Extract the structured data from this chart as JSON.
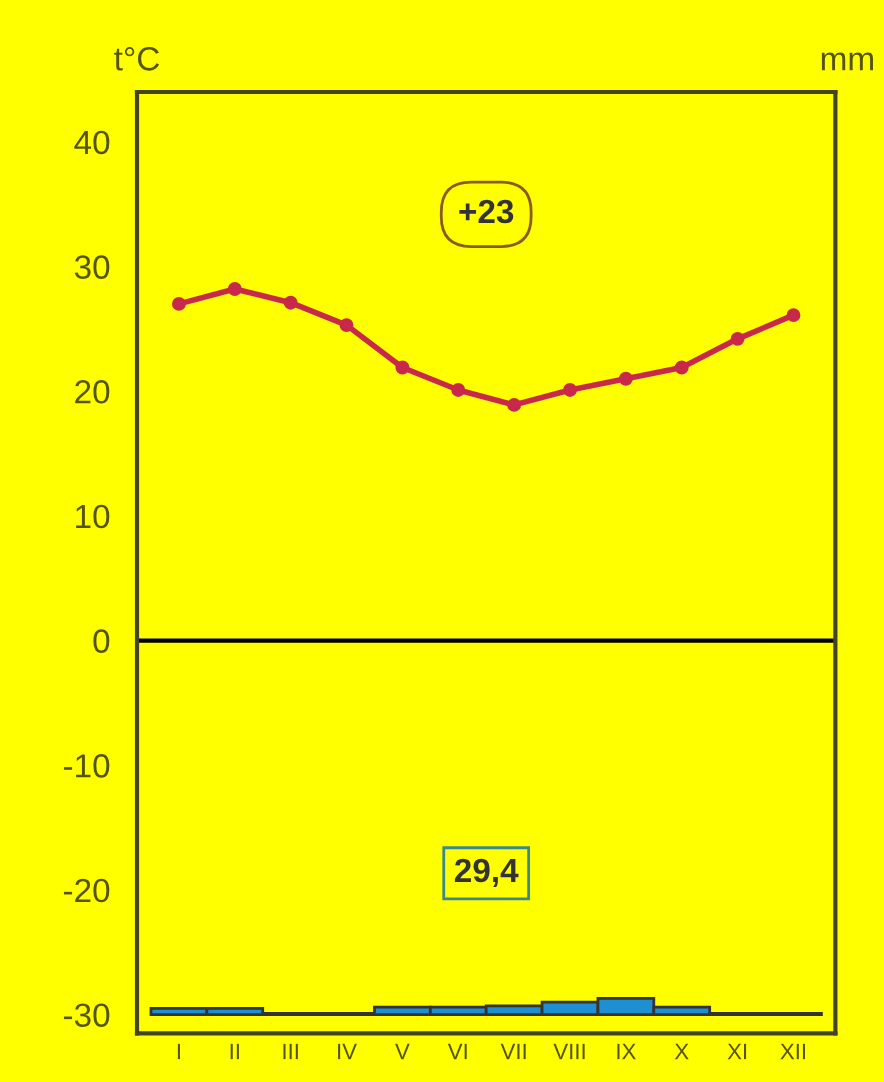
{
  "chart_data": {
    "type": "line",
    "ylabel": "t°C",
    "y2label": "mm",
    "categories": [
      "I",
      "II",
      "III",
      "IV",
      "V",
      "VI",
      "VII",
      "VIII",
      "IX",
      "X",
      "XI",
      "XII"
    ],
    "series": [
      {
        "type": "bar",
        "color": "#1e8fd0",
        "base": [
          -30,
          -30,
          -30,
          -30,
          -30,
          -30,
          -30,
          -30,
          -30,
          -30,
          -30,
          -30
        ],
        "values": [
          0.5,
          0.5,
          0.1,
          0.1,
          0.6,
          0.6,
          0.7,
          1.0,
          1.3,
          0.6,
          0.1,
          0.1
        ]
      },
      {
        "color": "#c8284a",
        "values": [
          27.0,
          28.2,
          27.1,
          25.3,
          21.9,
          20.1,
          18.9,
          20.1,
          21.0,
          21.9,
          24.2,
          26.1
        ]
      }
    ],
    "ylim": [
      -31.5,
      44
    ],
    "yticks": [
      -30,
      -20,
      -10,
      0,
      10,
      20,
      30,
      40
    ],
    "ref_lines": [
      {
        "axis": "y",
        "value": 0,
        "color": "#000000"
      }
    ],
    "annotations": [
      "+23",
      "29,4"
    ],
    "marker": "circle",
    "line_style": "solid",
    "grid": false,
    "legend": false
  }
}
